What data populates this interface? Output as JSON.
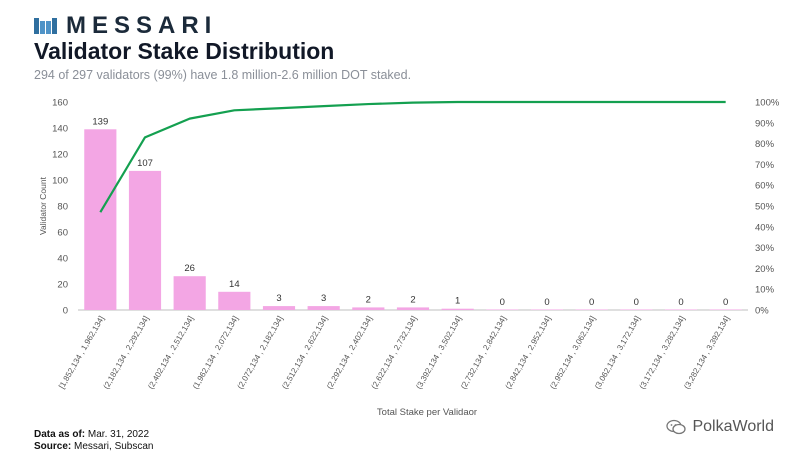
{
  "brand": {
    "name": "MESSARI",
    "logo_icon": "messari-logo-icon"
  },
  "header": {
    "title": "Validator Stake Distribution",
    "subtitle": "294 of 297 validators (99%) have 1.8 million-2.6 million DOT staked."
  },
  "footer": {
    "data_as_of_label": "Data as of:",
    "data_as_of_value": "Mar. 31, 2022",
    "source_label": "Source:",
    "source_value": "Messari, Subscan"
  },
  "watermark": {
    "text": "PolkaWorld",
    "icon": "wechat-icon"
  },
  "colors": {
    "bar": "#f3a6e4",
    "line": "#14a050",
    "axis_text": "#555555",
    "grid": "#dddddd"
  },
  "chart_data": {
    "type": "bar",
    "title": "Validator Stake Distribution",
    "xlabel": "Total Stake per Validaor",
    "ylabel": "Validator Count",
    "ylim": [
      0,
      160
    ],
    "y2lim": [
      0,
      100
    ],
    "yticks": [
      "0",
      "20",
      "40",
      "60",
      "80",
      "100",
      "120",
      "140",
      "160"
    ],
    "y2ticks": [
      "0%",
      "10%",
      "20%",
      "30%",
      "40%",
      "50%",
      "60%",
      "70%",
      "80%",
      "90%",
      "100%"
    ],
    "categories": [
      "[1,852,134 , 1,962,134]",
      "(2,182,134 , 2,292,134]",
      "(2,402,134 , 2,512,134]",
      "(1,962,134 , 2,072,134]",
      "(2,072,134 , 2,182,134]",
      "(2,512,134 , 2,622,134]",
      "(2,292,134 , 2,402,134]",
      "(2,622,134 , 2,732,134]",
      "(3,392,134 , 3,502,134]",
      "(2,732,134 , 2,842,134]",
      "(2,842,134 , 2,952,134]",
      "(2,952,134 , 3,062,134]",
      "(3,062,134 , 3,172,134]",
      "(3,172,134 , 3,282,134]",
      "(3,282,134 , 3,392,134]"
    ],
    "series": [
      {
        "type": "bar",
        "values": [
          139,
          107,
          26,
          14,
          3,
          3,
          2,
          2,
          1,
          0,
          0,
          0,
          0,
          0,
          0
        ]
      },
      {
        "type": "line",
        "axis": "right",
        "values": [
          47,
          83,
          92,
          96,
          97,
          98,
          99,
          99.7,
          100,
          100,
          100,
          100,
          100,
          100,
          100
        ]
      }
    ],
    "grid": false,
    "legend": "none"
  }
}
